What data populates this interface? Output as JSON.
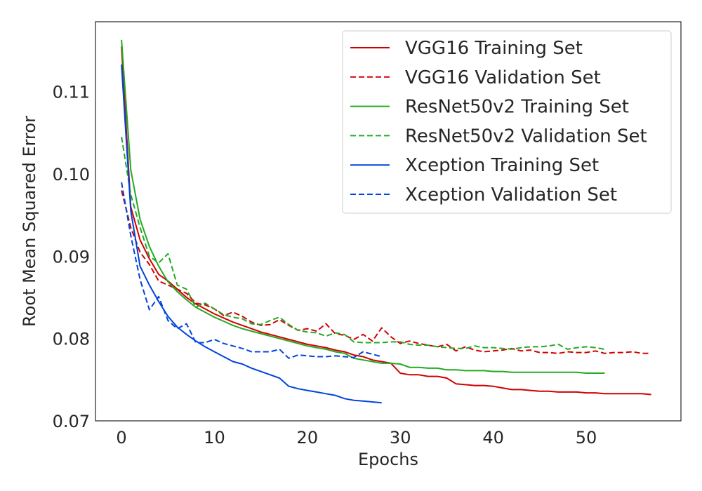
{
  "chart_data": {
    "type": "line",
    "xlabel": "Epochs",
    "ylabel": "Root Mean Squared Error",
    "xlim": [
      -2.8,
      60.2
    ],
    "ylim": [
      0.07,
      0.1185
    ],
    "xticks": [
      0,
      10,
      20,
      30,
      40,
      50
    ],
    "yticks": [
      0.07,
      0.08,
      0.09,
      0.1,
      0.11
    ],
    "xtick_labels": [
      "0",
      "10",
      "20",
      "30",
      "40",
      "50"
    ],
    "ytick_labels": [
      "0.07",
      "0.08",
      "0.09",
      "0.10",
      "0.11"
    ],
    "grid": false,
    "legend_position": "upper right",
    "series": [
      {
        "name": "VGG16 Training Set",
        "color": "#d10000",
        "style": "solid",
        "x": [
          0,
          1,
          2,
          3,
          4,
          5,
          6,
          7,
          8,
          9,
          10,
          11,
          12,
          13,
          14,
          15,
          16,
          17,
          18,
          19,
          20,
          21,
          22,
          23,
          24,
          25,
          26,
          27,
          28,
          29,
          30,
          31,
          32,
          33,
          34,
          35,
          36,
          37,
          38,
          39,
          40,
          41,
          42,
          43,
          44,
          45,
          46,
          47,
          48,
          49,
          50,
          51,
          52,
          53,
          54,
          55,
          56,
          57
        ],
        "y": [
          0.1155,
          0.096,
          0.092,
          0.0897,
          0.0878,
          0.087,
          0.086,
          0.085,
          0.0842,
          0.0836,
          0.083,
          0.0825,
          0.082,
          0.0816,
          0.0812,
          0.0808,
          0.0805,
          0.0802,
          0.0799,
          0.0796,
          0.0793,
          0.0791,
          0.0789,
          0.0786,
          0.0784,
          0.078,
          0.0778,
          0.0774,
          0.0772,
          0.077,
          0.0758,
          0.0756,
          0.0756,
          0.0754,
          0.0754,
          0.0752,
          0.0745,
          0.0744,
          0.0743,
          0.0743,
          0.0742,
          0.074,
          0.0738,
          0.0738,
          0.0737,
          0.0736,
          0.0736,
          0.0735,
          0.0735,
          0.0735,
          0.0734,
          0.0734,
          0.0733,
          0.0733,
          0.0733,
          0.0733,
          0.0733,
          0.0732
        ]
      },
      {
        "name": "VGG16 Validation Set",
        "color": "#d10000",
        "style": "dashed",
        "x": [
          0,
          1,
          2,
          3,
          4,
          5,
          6,
          7,
          8,
          9,
          10,
          11,
          12,
          13,
          14,
          15,
          16,
          17,
          18,
          19,
          20,
          21,
          22,
          23,
          24,
          25,
          26,
          27,
          28,
          29,
          30,
          31,
          32,
          33,
          34,
          35,
          36,
          37,
          38,
          39,
          40,
          41,
          42,
          43,
          44,
          45,
          46,
          47,
          48,
          49,
          50,
          51,
          52,
          53,
          54,
          55,
          56,
          57
        ],
        "y": [
          0.098,
          0.0935,
          0.0905,
          0.089,
          0.087,
          0.0865,
          0.086,
          0.0855,
          0.0843,
          0.0841,
          0.0836,
          0.0828,
          0.0832,
          0.0827,
          0.082,
          0.0816,
          0.0817,
          0.0823,
          0.0816,
          0.081,
          0.0812,
          0.0809,
          0.0818,
          0.0806,
          0.0804,
          0.0799,
          0.0805,
          0.0797,
          0.0813,
          0.0802,
          0.0794,
          0.0797,
          0.0794,
          0.0792,
          0.079,
          0.0793,
          0.0785,
          0.079,
          0.0786,
          0.0784,
          0.0785,
          0.0786,
          0.0788,
          0.0785,
          0.0786,
          0.0783,
          0.0783,
          0.0782,
          0.0784,
          0.0783,
          0.0783,
          0.0785,
          0.0782,
          0.0783,
          0.0783,
          0.0784,
          0.0782,
          0.0782
        ]
      },
      {
        "name": "ResNet50v2 Training Set",
        "color": "#22aa22",
        "style": "solid",
        "x": [
          0,
          1,
          2,
          3,
          4,
          5,
          6,
          7,
          8,
          9,
          10,
          11,
          12,
          13,
          14,
          15,
          16,
          17,
          18,
          19,
          20,
          21,
          22,
          23,
          24,
          25,
          26,
          27,
          28,
          29,
          30,
          31,
          32,
          33,
          34,
          35,
          36,
          37,
          38,
          39,
          40,
          41,
          42,
          43,
          44,
          45,
          46,
          47,
          48,
          49,
          50,
          51,
          52
        ],
        "y": [
          0.1163,
          0.1005,
          0.0945,
          0.0912,
          0.0888,
          0.0869,
          0.0857,
          0.0847,
          0.0838,
          0.0832,
          0.0826,
          0.0821,
          0.0816,
          0.0812,
          0.0809,
          0.0806,
          0.0803,
          0.08,
          0.0797,
          0.0794,
          0.0791,
          0.0789,
          0.0787,
          0.0784,
          0.0782,
          0.0776,
          0.0774,
          0.0772,
          0.077,
          0.077,
          0.0769,
          0.0765,
          0.0765,
          0.0764,
          0.0764,
          0.0762,
          0.0762,
          0.0761,
          0.0761,
          0.0761,
          0.076,
          0.076,
          0.0759,
          0.0759,
          0.0759,
          0.0759,
          0.0759,
          0.0759,
          0.0759,
          0.0759,
          0.0758,
          0.0758,
          0.0758
        ]
      },
      {
        "name": "ResNet50v2 Validation Set",
        "color": "#22aa22",
        "style": "dashed",
        "x": [
          0,
          1,
          2,
          3,
          4,
          5,
          6,
          7,
          8,
          9,
          10,
          11,
          12,
          13,
          14,
          15,
          16,
          17,
          18,
          19,
          20,
          21,
          22,
          23,
          24,
          25,
          26,
          27,
          28,
          29,
          30,
          31,
          32,
          33,
          34,
          35,
          36,
          37,
          38,
          39,
          40,
          41,
          42,
          43,
          44,
          45,
          46,
          47,
          48,
          49,
          50,
          51,
          52
        ],
        "y": [
          0.1045,
          0.0975,
          0.0935,
          0.09,
          0.0892,
          0.0903,
          0.0865,
          0.086,
          0.0838,
          0.0843,
          0.0836,
          0.0829,
          0.0826,
          0.0824,
          0.0818,
          0.0817,
          0.0822,
          0.0826,
          0.0817,
          0.081,
          0.0808,
          0.0807,
          0.0803,
          0.0807,
          0.0805,
          0.0796,
          0.0795,
          0.0795,
          0.0795,
          0.0796,
          0.0796,
          0.0793,
          0.0792,
          0.0792,
          0.079,
          0.0789,
          0.0788,
          0.0788,
          0.0791,
          0.0789,
          0.0789,
          0.0788,
          0.0787,
          0.0789,
          0.079,
          0.079,
          0.0791,
          0.0793,
          0.0787,
          0.0789,
          0.079,
          0.0789,
          0.0787
        ]
      },
      {
        "name": "Xception Training Set",
        "color": "#0044dd",
        "style": "solid",
        "x": [
          0,
          1,
          2,
          3,
          4,
          5,
          6,
          7,
          8,
          9,
          10,
          11,
          12,
          13,
          14,
          15,
          16,
          17,
          18,
          19,
          20,
          21,
          22,
          23,
          24,
          25,
          26,
          27,
          28
        ],
        "y": [
          0.1133,
          0.0955,
          0.0888,
          0.0865,
          0.0845,
          0.0827,
          0.0814,
          0.0805,
          0.0797,
          0.079,
          0.0784,
          0.0778,
          0.0772,
          0.0769,
          0.0764,
          0.076,
          0.0756,
          0.0752,
          0.0742,
          0.0739,
          0.0737,
          0.0735,
          0.0733,
          0.0731,
          0.0727,
          0.0725,
          0.0724,
          0.0723,
          0.0722
        ]
      },
      {
        "name": "Xception Validation Set",
        "color": "#0044dd",
        "style": "dashed",
        "x": [
          0,
          1,
          2,
          3,
          4,
          5,
          6,
          7,
          8,
          9,
          10,
          11,
          12,
          13,
          14,
          15,
          16,
          17,
          18,
          19,
          20,
          21,
          22,
          23,
          24,
          25,
          26,
          27,
          28
        ],
        "y": [
          0.099,
          0.0925,
          0.0872,
          0.0835,
          0.0851,
          0.0822,
          0.0812,
          0.0818,
          0.0795,
          0.0795,
          0.0799,
          0.0794,
          0.0791,
          0.0788,
          0.0784,
          0.0784,
          0.0784,
          0.0787,
          0.0776,
          0.078,
          0.0779,
          0.0778,
          0.0778,
          0.0779,
          0.0778,
          0.0777,
          0.0784,
          0.0781,
          0.0778
        ]
      }
    ]
  }
}
